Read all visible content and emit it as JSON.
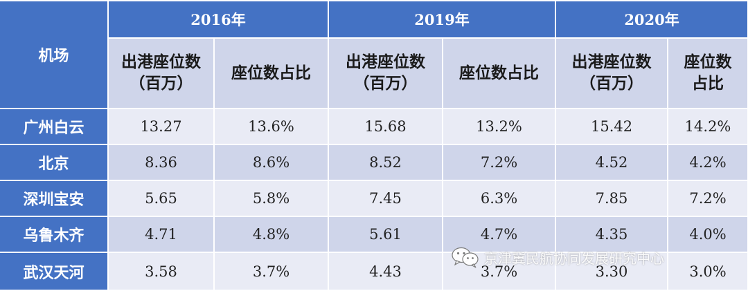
{
  "table": {
    "corner_label": "机场",
    "years": [
      "2016年",
      "2019年",
      "2020年"
    ],
    "sub_headers": [
      [
        "出港座位数",
        "（百万）"
      ],
      [
        "座位数占比"
      ],
      [
        "出港座位数",
        "（百万）"
      ],
      [
        "座位数占比"
      ],
      [
        "出港座位数",
        "（百万）"
      ],
      [
        "座位数",
        "占比"
      ]
    ],
    "rows": [
      {
        "airport": "广州白云",
        "values": [
          "13.27",
          "13.6%",
          "15.68",
          "13.2%",
          "15.42",
          "14.2%"
        ]
      },
      {
        "airport": "北京",
        "values": [
          "8.36",
          "8.6%",
          "8.52",
          "7.2%",
          "4.52",
          "4.2%"
        ]
      },
      {
        "airport": "深圳宝安",
        "values": [
          "5.65",
          "5.8%",
          "7.45",
          "6.3%",
          "7.85",
          "7.2%"
        ]
      },
      {
        "airport": "乌鲁木齐",
        "values": [
          "4.71",
          "4.8%",
          "5.61",
          "4.7%",
          "4.35",
          "4.0%"
        ]
      },
      {
        "airport": "武汉天河",
        "values": [
          "3.58",
          "3.7%",
          "4.43",
          "3.7%",
          "3.30",
          "3.0%"
        ]
      }
    ]
  },
  "watermark": {
    "text": "京津冀民航协同发展研究中心",
    "icon": "wechat-icon"
  }
}
